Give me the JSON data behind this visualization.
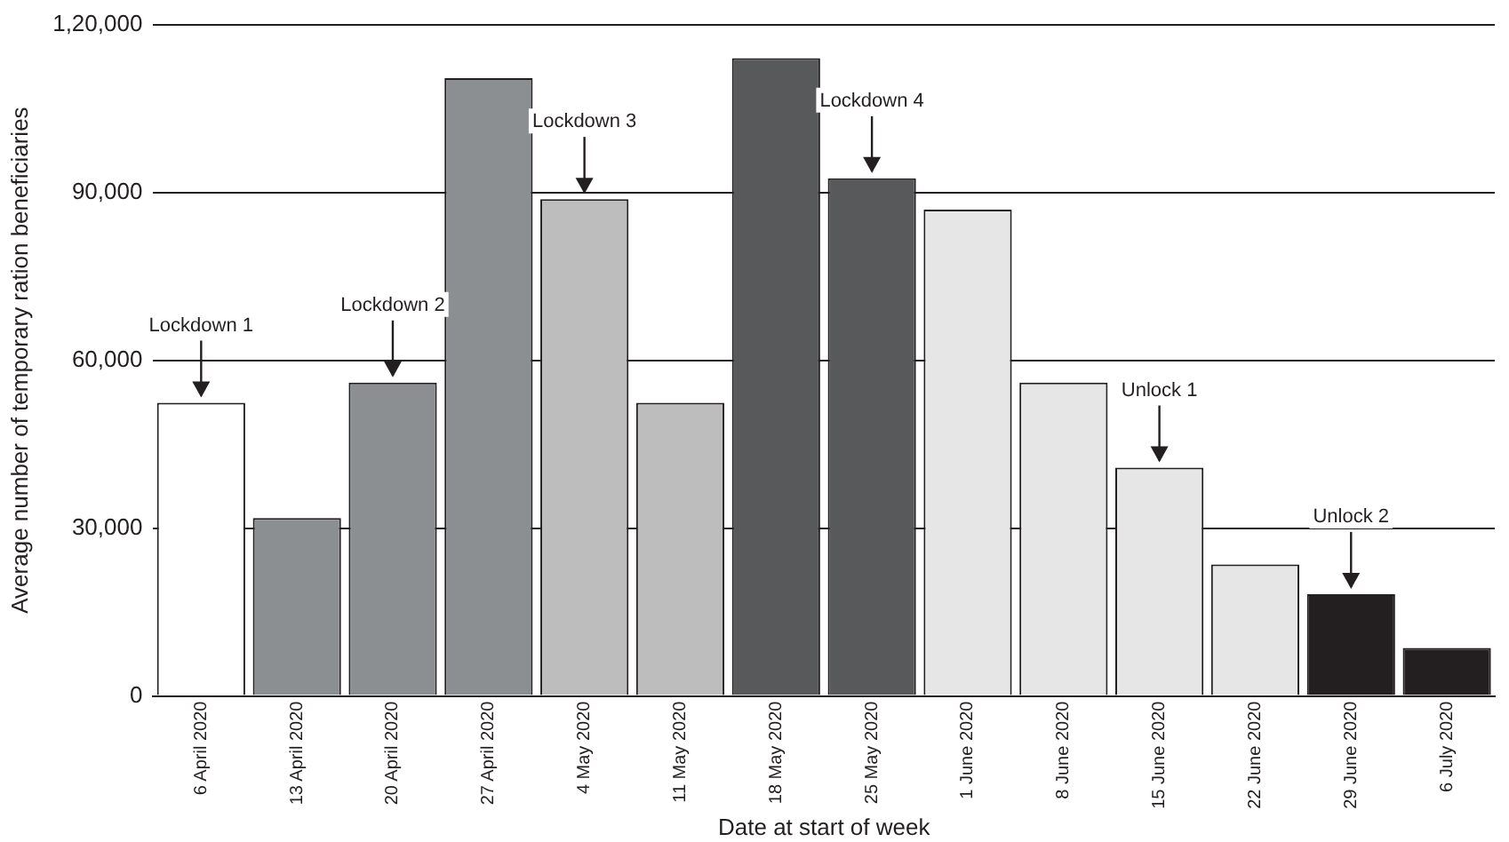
{
  "chart_data": {
    "type": "bar",
    "xlabel": "Date at start of week",
    "ylabel": "Average number of temporary ration beneficiaries",
    "categories": [
      "6 April 2020",
      "13 April 2020",
      "20 April 2020",
      "27 April 2020",
      "4 May 2020",
      "11 May 2020",
      "18 May 2020",
      "25 May 2020",
      "1 June 2020",
      "8 June 2020",
      "15 June 2020",
      "22 June 2020",
      "29 June 2020",
      "6 July 2020"
    ],
    "values": [
      52400,
      31800,
      56000,
      110400,
      88800,
      52400,
      114000,
      92500,
      86900,
      56000,
      40800,
      23500,
      18200,
      8600
    ],
    "colors": [
      "#ffffff",
      "#8c8f92",
      "#8c8f92",
      "#8c8f92",
      "#bdbdbd",
      "#bdbdbd",
      "#58595b",
      "#58595b",
      "#e6e6e6",
      "#e6e6e6",
      "#e6e6e6",
      "#e6e6e6",
      "#231f20",
      "#231f20"
    ],
    "ylim": [
      0,
      120000
    ],
    "yticks": [
      0,
      {
        "value": 30000,
        "label": "30,000"
      },
      {
        "value": 60000,
        "label": "60,000"
      },
      {
        "value": 90000,
        "label": "90,000"
      },
      {
        "value": 120000,
        "label": "1,20,000"
      }
    ],
    "grid": "y",
    "annotations": [
      {
        "text": "Lockdown 1",
        "x": "6 April 2020",
        "y": 52400
      },
      {
        "text": "Lockdown 2",
        "x": "20 April 2020",
        "y": 56000
      },
      {
        "text": "Lockdown 3",
        "x": "4 May 2020",
        "y": 88800
      },
      {
        "text": "Lockdown 4",
        "x": "25 May 2020",
        "y": 92500
      },
      {
        "text": "Unlock 1",
        "x": "15 June 2020",
        "y": 40800
      },
      {
        "text": "Unlock 2",
        "x": "29 June 2020",
        "y": 18200
      }
    ]
  }
}
